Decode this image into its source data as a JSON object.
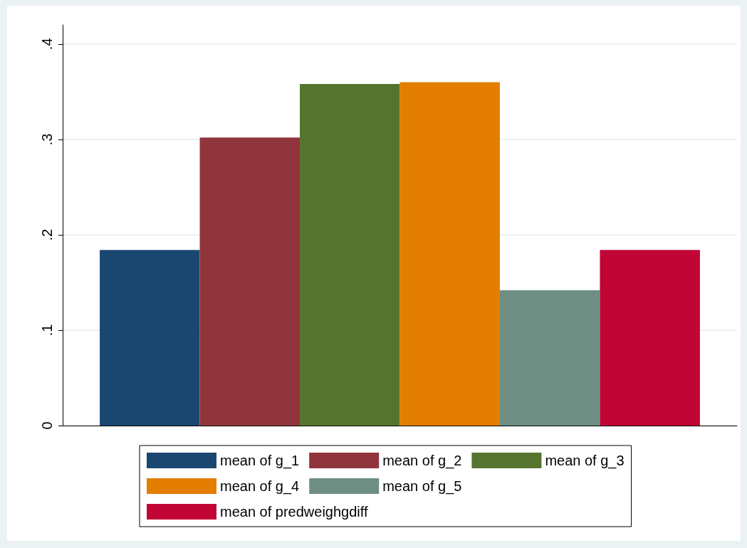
{
  "chart_data": {
    "type": "bar",
    "categories": [
      null
    ],
    "series": [
      {
        "name": "mean of g_1",
        "color": "#1a476f",
        "values": [
          0.184
        ]
      },
      {
        "name": "mean of g_2",
        "color": "#90353b",
        "values": [
          0.302
        ]
      },
      {
        "name": "mean of g_3",
        "color": "#55752f",
        "values": [
          0.358
        ]
      },
      {
        "name": "mean of g_4",
        "color": "#e37e00",
        "values": [
          0.36
        ]
      },
      {
        "name": "mean of g_5",
        "color": "#6e8e84",
        "values": [
          0.142
        ]
      },
      {
        "name": "mean of predweighgdiff",
        "color": "#c10534",
        "values": [
          0.184
        ]
      }
    ],
    "ylim": [
      0,
      0.42
    ],
    "yticks": [
      0,
      {
        "value": 0.1,
        "label": ".1"
      },
      {
        "value": 0.2,
        "label": ".2"
      },
      {
        "value": 0.3,
        "label": ".3"
      },
      {
        "value": 0.4,
        "label": ".4"
      }
    ],
    "grid": "y",
    "legend": "bottom"
  }
}
